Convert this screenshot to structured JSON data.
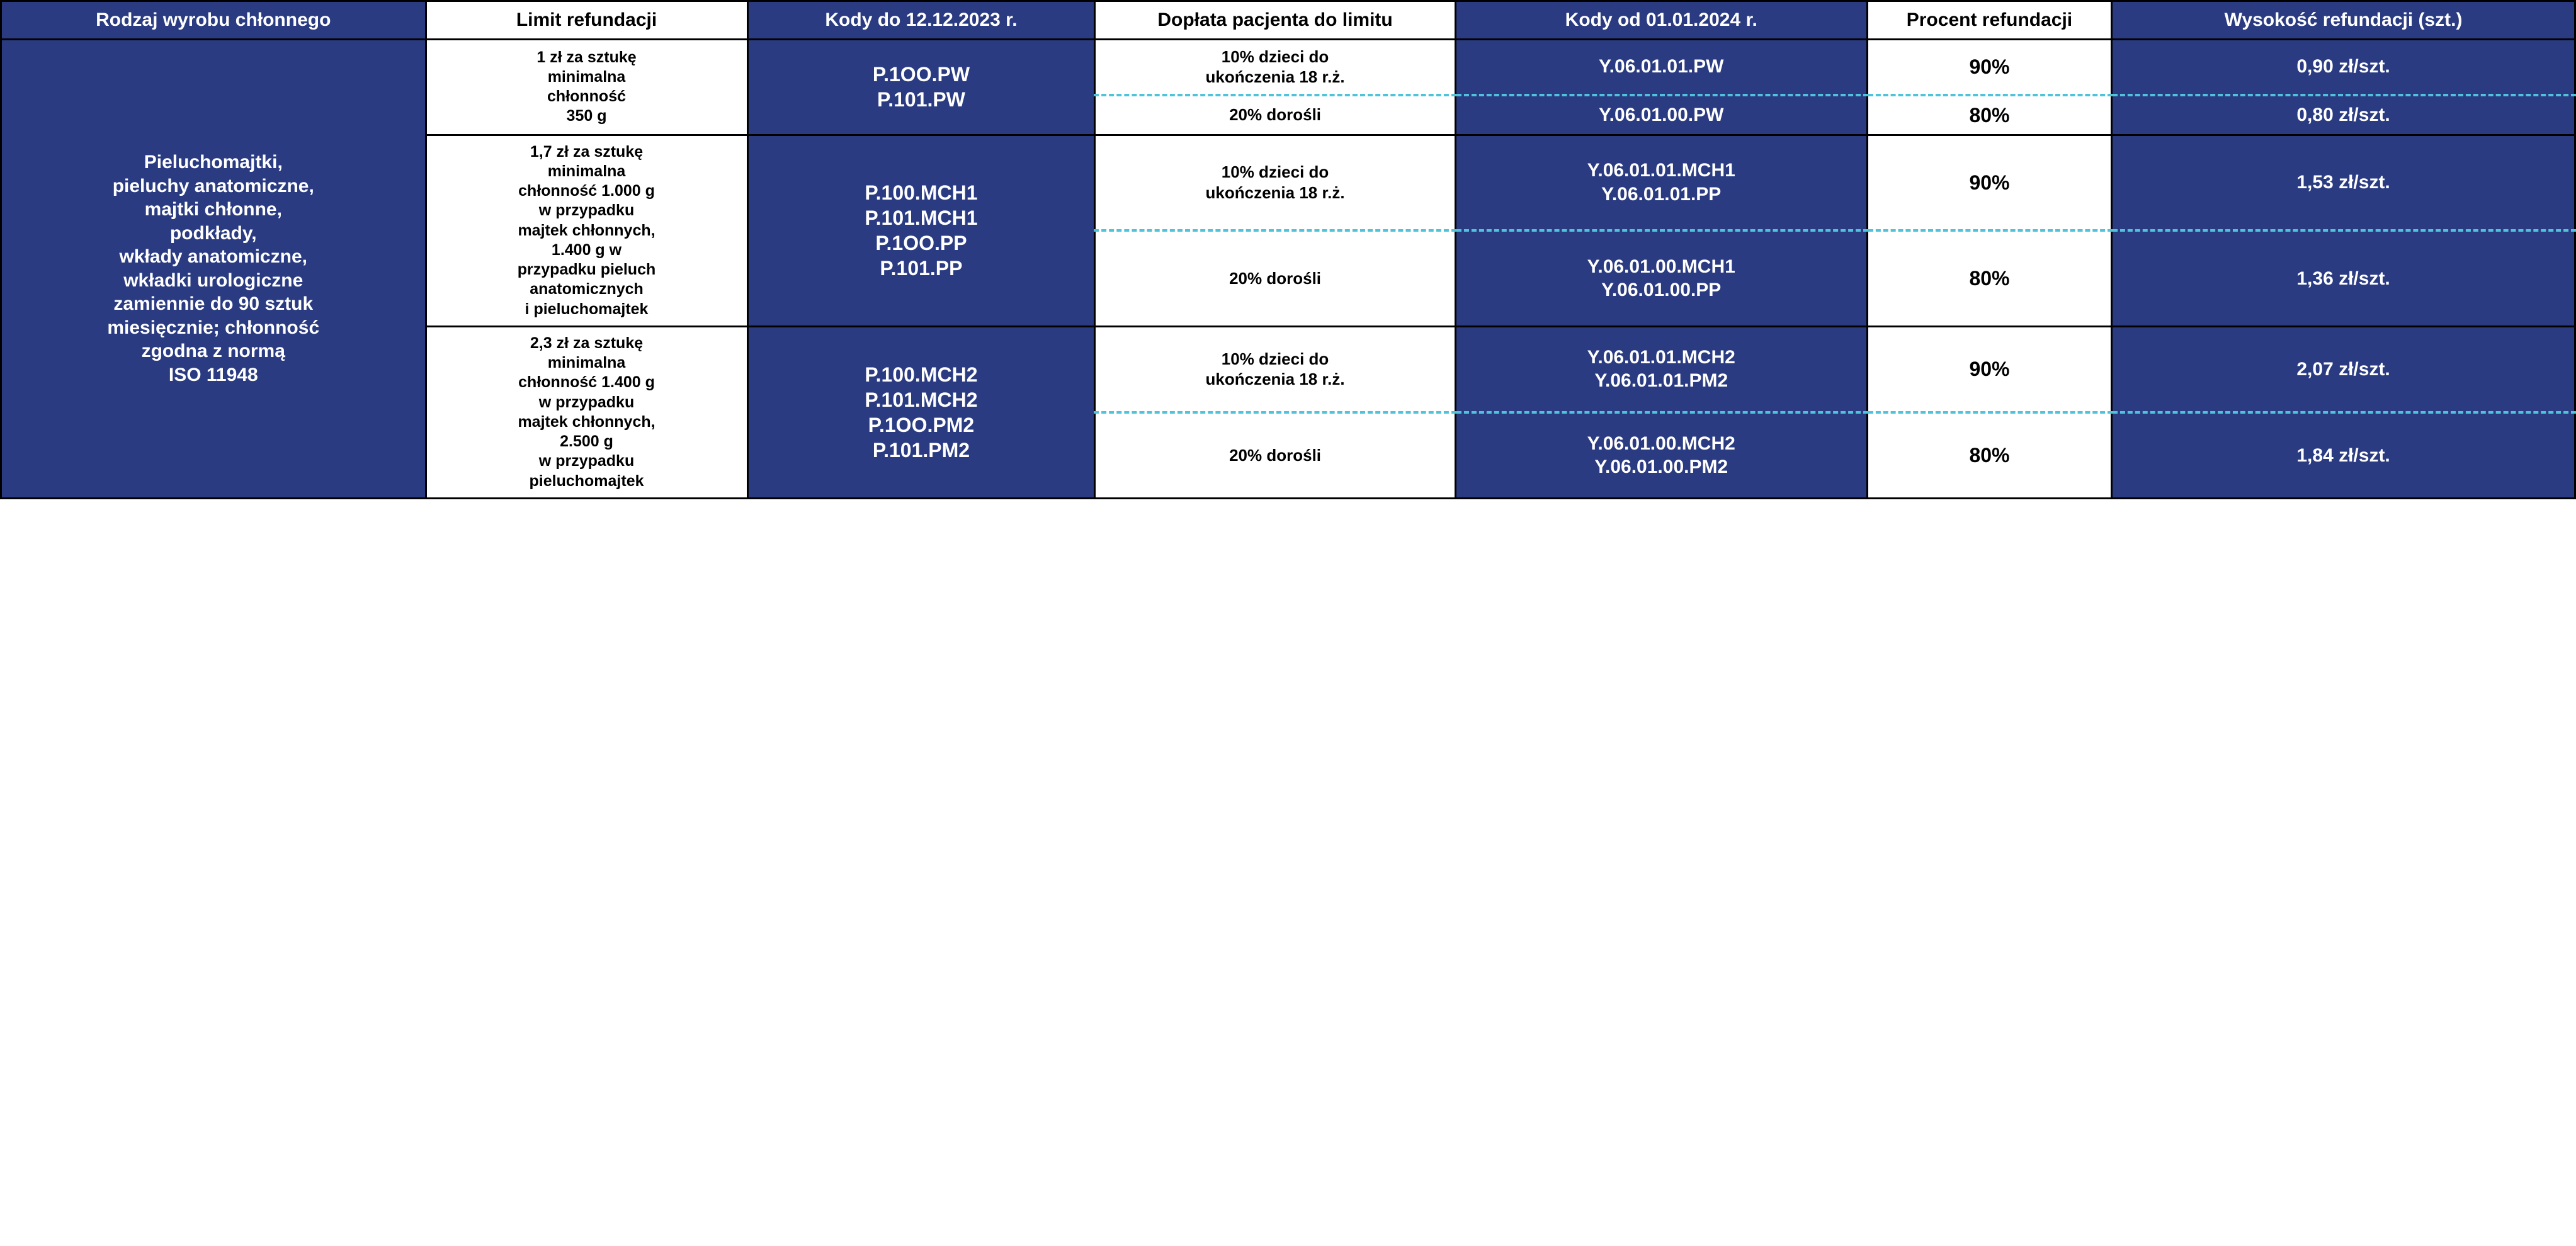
{
  "colors": {
    "blue_bg": "#2a3b82",
    "white_bg": "#ffffff",
    "text_on_blue": "#ffffff",
    "text_on_white": "#000000",
    "border": "#000000",
    "dash": "#4fc3d9"
  },
  "fonts": {
    "family": "Segoe UI, Arial, sans-serif",
    "header_size_pt": 22,
    "body_size_pt": 19,
    "weight": 700
  },
  "table": {
    "type": "table",
    "column_widths_pct": [
      16.5,
      12.5,
      13.5,
      14,
      16,
      9.5,
      18
    ],
    "headers": [
      "Rodzaj wyrobu chłonnego",
      "Limit refundacji",
      "Kody do 12.12.2023 r.",
      "Dopłata pacjenta do limitu",
      "Kody od 01.01.2024 r.",
      "Procent refundacji",
      "Wysokość refundacji (szt.)"
    ],
    "header_bg": [
      "blue",
      "white",
      "blue",
      "white",
      "blue",
      "white",
      "blue"
    ],
    "product_type": "Pieluchomajtki,\npieluchy anatomiczne,\nmajtki chłonne,\npodkłady,\nwkłady anatomiczne,\nwkładki urologiczne\nzamiennie do 90 sztuk\nmiesięcznie; chłonność\nzgodna z normą\nISO 11948",
    "groups": [
      {
        "limit": "1 zł za sztukę\nminimalna\nchłonność\n350 g",
        "old_codes": "P.1OO.PW\nP.101.PW",
        "rows": [
          {
            "copay": "10% dzieci do\nukończenia 18 r.ż.",
            "new_codes": "Y.06.01.01.PW",
            "percent": "90%",
            "amount": "0,90 zł/szt."
          },
          {
            "copay": "20% dorośli",
            "new_codes": "Y.06.01.00.PW",
            "percent": "80%",
            "amount": "0,80 zł/szt."
          }
        ]
      },
      {
        "limit": "1,7 zł za sztukę\nminimalna\nchłonność 1.000 g\nw przypadku\nmajtek chłonnych,\n1.400 g w\nprzypadku pieluch\nanatomicznych\ni pieluchomajtek",
        "old_codes": "P.100.MCH1\nP.101.MCH1\nP.1OO.PP\nP.101.PP",
        "rows": [
          {
            "copay": "10% dzieci do\nukończenia 18 r.ż.",
            "new_codes": "Y.06.01.01.MCH1\nY.06.01.01.PP",
            "percent": "90%",
            "amount": "1,53 zł/szt."
          },
          {
            "copay": "20% dorośli",
            "new_codes": "Y.06.01.00.MCH1\nY.06.01.00.PP",
            "percent": "80%",
            "amount": "1,36 zł/szt."
          }
        ]
      },
      {
        "limit": "2,3 zł za sztukę\nminimalna\nchłonność 1.400 g\nw przypadku\nmajtek chłonnych,\n2.500 g\nw przypadku\npieluchomajtek",
        "old_codes": "P.100.MCH2\nP.101.MCH2\nP.1OO.PM2\nP.101.PM2",
        "rows": [
          {
            "copay": "10% dzieci do\nukończenia 18 r.ż.",
            "new_codes": "Y.06.01.01.MCH2\nY.06.01.01.PM2",
            "percent": "90%",
            "amount": "2,07 zł/szt."
          },
          {
            "copay": "20% dorośli",
            "new_codes": "Y.06.01.00.MCH2\nY.06.01.00.PM2",
            "percent": "80%",
            "amount": "1,84 zł/szt."
          }
        ]
      }
    ]
  }
}
